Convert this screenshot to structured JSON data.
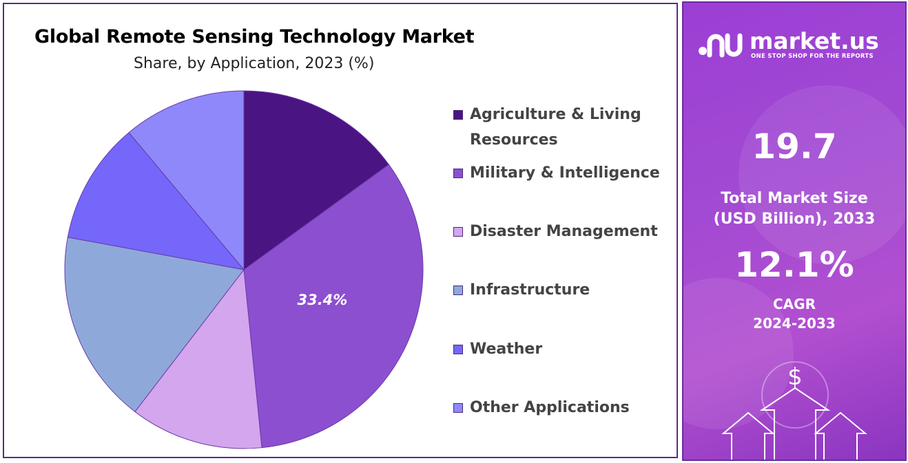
{
  "chart_data": {
    "type": "pie",
    "title": "Global Remote Sensing Technology Market",
    "subtitle": "Share, by Application, 2023 (%)",
    "categories": [
      "Agriculture & Living Resources",
      "Military & Intelligence",
      "Disaster Management",
      "Infrastructure",
      "Weather",
      "Other Applications"
    ],
    "values": [
      15.0,
      33.4,
      12.0,
      17.5,
      11.0,
      11.1
    ],
    "colors": [
      "#4a1582",
      "#8c4fd0",
      "#d3a6ee",
      "#8fa8da",
      "#7467fa",
      "#8e88fb"
    ],
    "data_labels": [
      "",
      "33.4%",
      "",
      "",
      "",
      ""
    ],
    "legend_position": "right"
  },
  "side": {
    "brand_name": "market.us",
    "brand_tagline": "ONE STOP SHOP FOR THE REPORTS",
    "market_size_value": "19.7",
    "market_size_label_line1": "Total Market Size",
    "market_size_label_line2": "(USD Billion), 2033",
    "cagr_value": "12.1%",
    "cagr_label_line1": "CAGR",
    "cagr_label_line2": "2024-2033",
    "dollar_symbol": "$"
  },
  "icons": {
    "brand_logo": "market-us-logo-icon",
    "dollar_art": "dollar-growth-arrows-icon"
  }
}
